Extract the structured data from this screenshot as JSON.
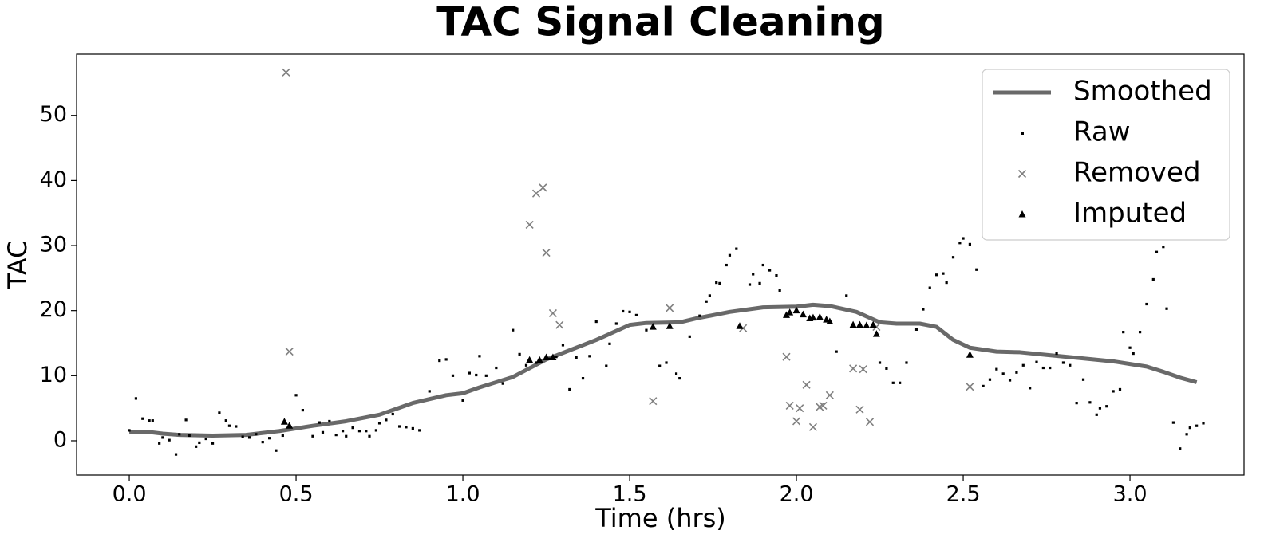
{
  "chart_data": {
    "type": "scatter",
    "title": "TAC Signal Cleaning",
    "x_label": "Time (hrs)",
    "y_label": "TAC",
    "xlim": [
      -0.158,
      3.342
    ],
    "ylim": [
      -5.27,
      59.4
    ],
    "xticks": [
      {
        "value": 0,
        "label": "0.0"
      },
      {
        "value": 0.5,
        "label": "0.5"
      },
      {
        "value": 1,
        "label": "1.0"
      },
      {
        "value": 1.5,
        "label": "1.5"
      },
      {
        "value": 2,
        "label": "2.0"
      },
      {
        "value": 2.5,
        "label": "2.5"
      },
      {
        "value": 3,
        "label": "3.0"
      }
    ],
    "yticks": [
      0,
      10,
      20,
      30,
      40,
      50
    ],
    "legend": "upper right",
    "series": [
      {
        "name": "Smoothed",
        "color": "#696969",
        "marker": "line",
        "x": [
          0,
          0.05,
          0.1,
          0.15,
          0.25,
          0.35,
          0.45,
          0.55,
          0.65,
          0.75,
          0.85,
          0.95,
          1.0,
          1.05,
          1.15,
          1.25,
          1.3,
          1.4,
          1.5,
          1.55,
          1.65,
          1.7,
          1.8,
          1.9,
          2.0,
          2.05,
          2.1,
          2.18,
          2.25,
          2.3,
          2.37,
          2.42,
          2.47,
          2.52,
          2.6,
          2.67,
          2.75,
          2.85,
          2.95,
          3.0,
          3.05,
          3.1,
          3.15,
          3.2
        ],
        "values": [
          1.3,
          1.4,
          1.1,
          0.9,
          0.8,
          0.9,
          1.5,
          2.3,
          3,
          4,
          5.8,
          7,
          7.3,
          8.2,
          9.8,
          12.5,
          13.5,
          15.5,
          17.8,
          18.1,
          18.2,
          18.8,
          19.8,
          20.5,
          20.6,
          20.9,
          20.7,
          19.8,
          18.2,
          18,
          18,
          17.5,
          15.5,
          14.3,
          13.7,
          13.6,
          13.2,
          12.7,
          12.2,
          11.8,
          11.4,
          10.6,
          9.7,
          9
        ]
      },
      {
        "name": "Raw",
        "color": "#000000",
        "marker": "point",
        "x": [
          0.0,
          0.02,
          0.04,
          0.06,
          0.07,
          0.09,
          0.1,
          0.12,
          0.14,
          0.15,
          0.17,
          0.18,
          0.2,
          0.21,
          0.23,
          0.25,
          0.27,
          0.29,
          0.3,
          0.32,
          0.34,
          0.36,
          0.38,
          0.4,
          0.42,
          0.44,
          0.46,
          0.5,
          0.52,
          0.55,
          0.57,
          0.58,
          0.6,
          0.62,
          0.64,
          0.65,
          0.67,
          0.69,
          0.71,
          0.72,
          0.74,
          0.75,
          0.77,
          0.79,
          0.81,
          0.83,
          0.85,
          0.87,
          0.9,
          0.93,
          0.95,
          0.97,
          1.0,
          1.02,
          1.04,
          1.05,
          1.07,
          1.1,
          1.12,
          1.15,
          1.17,
          1.19,
          1.22,
          1.26,
          1.28,
          1.3,
          1.32,
          1.34,
          1.36,
          1.38,
          1.4,
          1.43,
          1.44,
          1.46,
          1.48,
          1.5,
          1.52,
          1.55,
          1.59,
          1.61,
          1.64,
          1.65,
          1.68,
          1.71,
          1.73,
          1.74,
          1.76,
          1.77,
          1.79,
          1.8,
          1.82,
          1.86,
          1.87,
          1.89,
          1.9,
          1.92,
          1.94,
          1.95,
          2.12,
          2.15,
          2.25,
          2.27,
          2.29,
          2.31,
          2.33,
          2.36,
          2.38,
          2.4,
          2.42,
          2.44,
          2.45,
          2.47,
          2.49,
          2.5,
          2.52,
          2.54,
          2.56,
          2.58,
          2.6,
          2.62,
          2.64,
          2.66,
          2.68,
          2.7,
          2.72,
          2.74,
          2.76,
          2.78,
          2.8,
          2.82,
          2.84,
          2.86,
          2.88,
          2.9,
          2.91,
          2.93,
          2.95,
          2.97,
          2.98,
          3.0,
          3.01,
          3.03,
          3.05,
          3.07,
          3.08,
          3.1,
          3.11,
          3.13,
          3.15,
          3.17,
          3.18,
          3.2,
          3.22
        ],
        "values": [
          1.6,
          6.5,
          3.4,
          3.1,
          3.1,
          -0.4,
          0.5,
          0.1,
          -2.1,
          1.0,
          3.2,
          0.8,
          -0.9,
          -0.3,
          0.3,
          -0.4,
          4.3,
          3.1,
          2.3,
          2.2,
          0.6,
          0.5,
          1,
          -0.2,
          0.4,
          -1.5,
          0.8,
          7,
          4.7,
          0.7,
          2.8,
          1.3,
          3,
          0.9,
          1.5,
          0.7,
          2,
          1.5,
          1.5,
          0.7,
          1.6,
          2.7,
          3.2,
          4.1,
          2.2,
          2.1,
          1.9,
          1.6,
          7.6,
          12.3,
          12.5,
          10,
          6.2,
          10.4,
          10.1,
          13,
          10,
          11.2,
          8.8,
          17,
          13.3,
          11.6,
          12,
          12.6,
          12.9,
          14.7,
          7.9,
          12.8,
          9.6,
          13,
          18.3,
          11.5,
          14.9,
          18,
          19.9,
          19.8,
          19.3,
          17,
          11.5,
          12,
          10.3,
          9.6,
          16,
          19.2,
          21.4,
          22.3,
          24.3,
          24.2,
          27,
          28.5,
          29.5,
          24,
          25.6,
          24.2,
          27,
          26.2,
          25.4,
          23.1,
          13.7,
          22.3,
          12,
          11.1,
          8.9,
          8.9,
          12,
          17.1,
          20.2,
          23.5,
          25.5,
          25.7,
          24.3,
          28.2,
          30.4,
          31.1,
          30.2,
          26.3,
          8.4,
          9.4,
          11,
          10.3,
          9.3,
          10.5,
          11.6,
          8.1,
          12.1,
          11.2,
          11.2,
          13.4,
          12,
          11.6,
          5.8,
          9.4,
          5.9,
          4,
          5,
          5.3,
          7.6,
          7.9,
          16.7,
          14.3,
          13.4,
          16.7,
          21,
          24.8,
          29,
          29.8,
          20.3,
          2.8,
          -1.2,
          1,
          2,
          2.3,
          2.7
        ]
      },
      {
        "name": "Removed",
        "color": "#808080",
        "marker": "x",
        "x": [
          0.47,
          0.48,
          1.2,
          1.22,
          1.24,
          1.25,
          1.27,
          1.29,
          1.57,
          1.62,
          1.84,
          1.97,
          1.98,
          2.0,
          2.01,
          2.03,
          2.05,
          2.07,
          2.08,
          2.1,
          2.17,
          2.19,
          2.2,
          2.22,
          2.24,
          2.52
        ],
        "values": [
          56.6,
          13.7,
          33.2,
          38,
          38.9,
          28.9,
          19.6,
          17.8,
          6.1,
          20.4,
          17.3,
          12.9,
          5.4,
          3,
          5,
          8.6,
          2.1,
          5.2,
          5.4,
          7,
          11.1,
          4.8,
          11,
          2.9,
          17.5,
          8.3
        ]
      },
      {
        "name": "Imputed",
        "color": "#000000",
        "marker": "triangle",
        "x": [
          0.465,
          0.48,
          1.2,
          1.23,
          1.25,
          1.27,
          1.57,
          1.62,
          1.83,
          1.97,
          1.98,
          2.0,
          2.02,
          2.04,
          2.05,
          2.07,
          2.09,
          2.1,
          2.17,
          2.19,
          2.21,
          2.23,
          2.24,
          2.52
        ],
        "values": [
          2.9,
          2.3,
          12.4,
          12.4,
          12.8,
          12.8,
          17.5,
          17.6,
          17.6,
          19.3,
          19.7,
          20,
          19.4,
          18.8,
          18.9,
          19,
          18.6,
          18.3,
          17.8,
          17.8,
          17.7,
          17.8,
          16.4,
          13.2
        ]
      }
    ]
  }
}
